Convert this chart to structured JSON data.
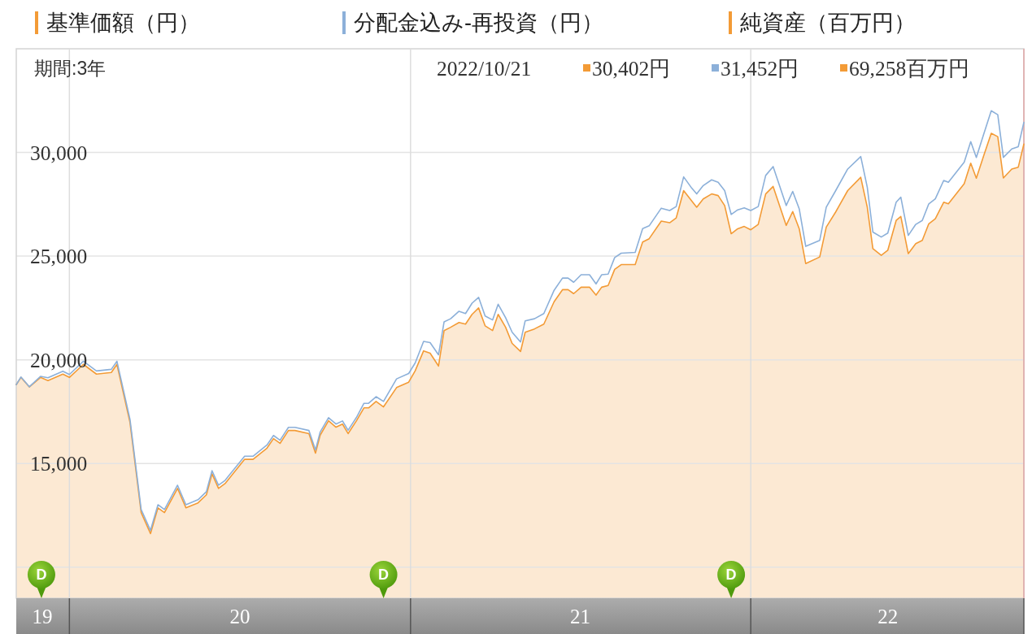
{
  "chart_data": {
    "type": "line",
    "subtitle": "期間:3年",
    "x": [
      "2019-11-05",
      "2019-11-10",
      "2019-11-19",
      "2019-12-01",
      "2019-12-09",
      "2019-12-25",
      "2020-01-01",
      "2020-01-16",
      "2020-01-30",
      "2020-02-15",
      "2020-02-21",
      "2020-03-06",
      "2020-03-18",
      "2020-03-28",
      "2020-04-05",
      "2020-04-12",
      "2020-04-26",
      "2020-05-05",
      "2020-05-18",
      "2020-05-27",
      "2020-06-02",
      "2020-06-09",
      "2020-06-16",
      "2020-07-07",
      "2020-07-16",
      "2020-07-31",
      "2020-08-07",
      "2020-08-14",
      "2020-08-23",
      "2020-08-30",
      "2020-09-14",
      "2020-09-21",
      "2020-09-26",
      "2020-10-05",
      "2020-10-13",
      "2020-10-20",
      "2020-10-26",
      "2020-11-04",
      "2020-11-12",
      "2020-11-17",
      "2020-11-25",
      "2020-12-03",
      "2020-12-17",
      "2020-12-30",
      "2021-01-06",
      "2021-01-15",
      "2021-01-22",
      "2021-01-31",
      "2021-02-06",
      "2021-02-13",
      "2021-02-22",
      "2021-03-01",
      "2021-03-08",
      "2021-03-15",
      "2021-03-22",
      "2021-03-30",
      "2021-04-05",
      "2021-04-13",
      "2021-04-20",
      "2021-04-29",
      "2021-05-04",
      "2021-05-14",
      "2021-05-24",
      "2021-06-04",
      "2021-06-13",
      "2021-06-19",
      "2021-06-25",
      "2021-07-03",
      "2021-07-12",
      "2021-07-19",
      "2021-07-25",
      "2021-08-01",
      "2021-08-08",
      "2021-08-15",
      "2021-08-30",
      "2021-09-07",
      "2021-09-14",
      "2021-09-27",
      "2021-10-06",
      "2021-10-13",
      "2021-10-21",
      "2021-10-29",
      "2021-11-04",
      "2021-11-11",
      "2021-11-20",
      "2021-11-27",
      "2021-12-04",
      "2021-12-11",
      "2021-12-18",
      "2021-12-25",
      "2022-01-01",
      "2022-01-09",
      "2022-01-17",
      "2022-01-25",
      "2022-02-08",
      "2022-02-15",
      "2022-02-22",
      "2022-03-01",
      "2022-03-16",
      "2022-03-23",
      "2022-04-02",
      "2022-04-15",
      "2022-04-29",
      "2022-05-06",
      "2022-05-12",
      "2022-05-21",
      "2022-05-28",
      "2022-06-06",
      "2022-06-11",
      "2022-06-19",
      "2022-06-27",
      "2022-07-04",
      "2022-07-11",
      "2022-07-18",
      "2022-07-27",
      "2022-08-01",
      "2022-08-18",
      "2022-08-25",
      "2022-08-31",
      "2022-09-08",
      "2022-09-16",
      "2022-09-23",
      "2022-09-29",
      "2022-10-08",
      "2022-10-15",
      "2022-10-21"
    ],
    "series": [
      {
        "name": "基準価額（円）",
        "type": "area",
        "color": "#f39b36",
        "values": [
          18800,
          19150,
          18690,
          19150,
          19000,
          19310,
          19150,
          19780,
          19310,
          19390,
          19780,
          16980,
          12630,
          11620,
          12860,
          12630,
          13800,
          12860,
          13100,
          13490,
          14500,
          13800,
          14030,
          15200,
          15200,
          15740,
          16200,
          15970,
          16590,
          16590,
          16440,
          15500,
          16360,
          17060,
          16750,
          16900,
          16440,
          17060,
          17680,
          17680,
          17990,
          17730,
          18660,
          18920,
          19470,
          20430,
          20320,
          19700,
          21410,
          21570,
          21800,
          21720,
          22190,
          22500,
          21640,
          21410,
          22190,
          21570,
          20790,
          20400,
          21330,
          21490,
          21720,
          22800,
          23380,
          23380,
          23190,
          23500,
          23500,
          23120,
          23500,
          23580,
          24360,
          24590,
          24590,
          25680,
          25840,
          26690,
          26610,
          26840,
          28160,
          27700,
          27360,
          27760,
          28000,
          27920,
          27440,
          26080,
          26320,
          26430,
          26270,
          26530,
          28000,
          28360,
          26480,
          27150,
          26320,
          24640,
          24960,
          26400,
          27120,
          28160,
          28800,
          27360,
          25360,
          25040,
          25280,
          26720,
          26910,
          25120,
          25600,
          25760,
          26560,
          26800,
          27600,
          27520,
          28490,
          29480,
          28760,
          29850,
          30920,
          30760,
          28770,
          29200,
          29290,
          30402
        ]
      },
      {
        "name": "分配金込み-再投資（円）",
        "type": "line",
        "color": "#8cb0d9",
        "values": [
          18800,
          19170,
          18700,
          19200,
          19130,
          19450,
          19290,
          19930,
          19460,
          19540,
          19930,
          17130,
          12780,
          11770,
          13010,
          12780,
          13950,
          13010,
          13250,
          13640,
          14650,
          13950,
          14180,
          15350,
          15350,
          15890,
          16350,
          16120,
          16740,
          16740,
          16590,
          15650,
          16510,
          17210,
          16900,
          17050,
          16600,
          17220,
          17900,
          17900,
          18220,
          17990,
          19080,
          19340,
          19850,
          20890,
          20830,
          20240,
          21830,
          21980,
          22340,
          22230,
          22730,
          23010,
          22110,
          21920,
          22680,
          22030,
          21330,
          20860,
          21880,
          21980,
          22230,
          23350,
          23940,
          23940,
          23740,
          24100,
          24100,
          23660,
          24100,
          24130,
          24930,
          25140,
          25180,
          26330,
          26460,
          27310,
          27200,
          27390,
          28820,
          28320,
          28000,
          28400,
          28680,
          28560,
          28160,
          27010,
          27230,
          27330,
          27200,
          27390,
          28890,
          29320,
          27440,
          28120,
          27280,
          25470,
          25760,
          27360,
          28150,
          29200,
          29800,
          28320,
          26160,
          25920,
          26110,
          27600,
          27840,
          26000,
          26530,
          26720,
          27520,
          27760,
          28650,
          28560,
          29530,
          30520,
          29760,
          30890,
          32010,
          31820,
          29760,
          30170,
          30280,
          31452
        ]
      },
      {
        "name": "純資産（百万円）",
        "type": "line",
        "color": "#f39b36",
        "values": [
          null,
          null,
          null,
          null,
          null,
          null,
          null,
          null,
          null,
          null,
          null,
          null,
          null,
          null,
          null,
          null,
          null,
          null,
          null,
          null,
          null,
          null,
          null,
          null,
          null,
          null,
          null,
          null,
          null,
          null,
          null,
          null,
          null,
          null,
          null,
          null,
          null,
          null,
          null,
          null,
          null,
          null,
          null,
          null,
          null,
          null,
          null,
          null,
          null,
          null,
          null,
          null,
          null,
          null,
          null,
          null,
          null,
          null,
          null,
          null,
          null,
          null,
          null,
          null,
          null,
          null,
          null,
          null,
          null,
          null,
          null,
          null,
          null,
          null,
          null,
          null,
          null,
          null,
          null,
          null,
          null,
          null,
          null,
          null,
          null,
          null,
          null,
          null,
          null,
          null,
          null,
          null,
          null,
          null,
          null,
          null,
          null,
          null,
          null,
          null,
          null,
          null,
          null,
          null,
          null,
          null,
          null,
          null,
          null,
          null,
          null,
          null,
          null,
          null,
          null,
          null,
          null,
          null,
          null,
          null,
          null,
          null,
          null,
          null,
          null,
          null
        ]
      }
    ],
    "xlim": [
      "2019-11-05",
      "2022-10-21"
    ],
    "xticks": [
      {
        "value": "2019-12-03",
        "label": "19"
      },
      {
        "value": "2020-07-02",
        "label": "20"
      },
      {
        "value": "2021-07-02",
        "label": "21"
      },
      {
        "value": "2022-05-28",
        "label": "22"
      }
    ],
    "ylim": [
      8500,
      35000
    ],
    "yticks": [
      {
        "value": 10000,
        "label": null
      },
      {
        "value": 15000,
        "label": "15,000"
      },
      {
        "value": 20000,
        "label": "20,000"
      },
      {
        "value": 25000,
        "label": "25,000"
      },
      {
        "value": 30000,
        "label": "30,000"
      }
    ],
    "grid": "y",
    "legend": "top",
    "ref_lines": [
      {
        "axis": "x",
        "value": "2020-01-01",
        "color": "#dddddd"
      },
      {
        "axis": "x",
        "value": "2021-01-01",
        "color": "#dddddd"
      },
      {
        "axis": "x",
        "value": "2022-01-01",
        "color": "#dddddd"
      },
      {
        "axis": "x",
        "value": "2022-10-21",
        "color": "#e0a6a6"
      }
    ],
    "annotations": [
      "2022/10/21",
      "30,402円",
      "31,452円",
      "69,258百万円",
      {
        "text": "D",
        "x": "2019-12-02",
        "y": 8500
      },
      {
        "text": "D",
        "x": "2020-12-03",
        "y": 8500
      },
      {
        "text": "D",
        "x": "2021-12-11",
        "y": 8500
      }
    ]
  }
}
